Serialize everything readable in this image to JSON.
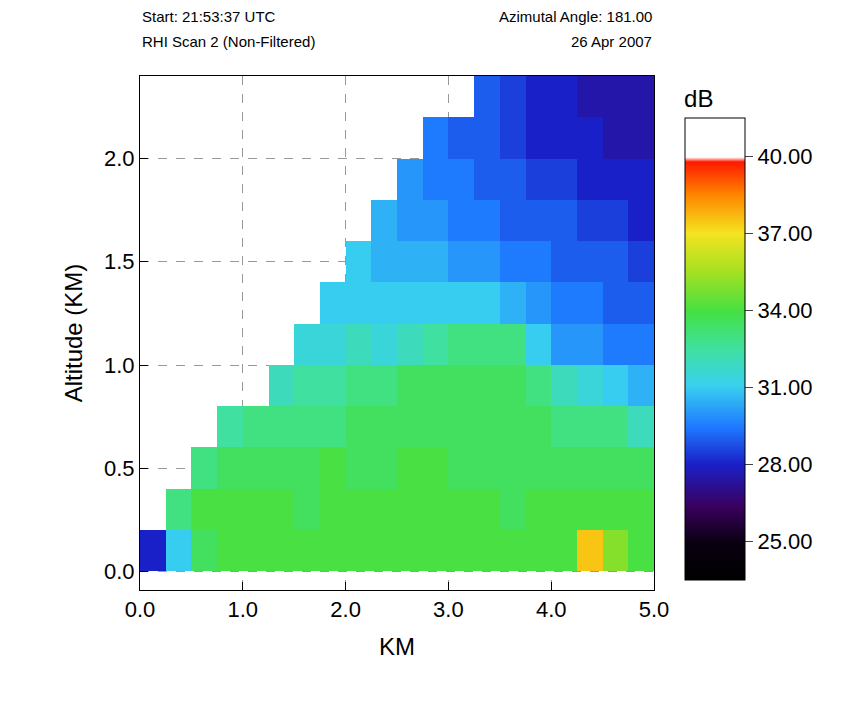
{
  "chart_data": {
    "type": "heatmap",
    "annotations": [
      "Start: 21:53:37 UTC",
      "Azimutal Angle: 181.00",
      "RHI Scan 2 (Non-Filtered)",
      "26 Apr 2007"
    ],
    "x_label": "KM",
    "y_label": "Altitude (KM)",
    "xlim": [
      0,
      5
    ],
    "ylim": [
      -0.09,
      2.4
    ],
    "xticks": [
      {
        "value": 0,
        "label": "0.0"
      },
      {
        "value": 1,
        "label": "1.0"
      },
      {
        "value": 2,
        "label": "2.0"
      },
      {
        "value": 3,
        "label": "3.0"
      },
      {
        "value": 4,
        "label": "4.0"
      },
      {
        "value": 5,
        "label": "5.0"
      }
    ],
    "yticks": [
      {
        "value": 0,
        "label": "0.0"
      },
      {
        "value": 0.5,
        "label": "0.5"
      },
      {
        "value": 1,
        "label": "1.0"
      },
      {
        "value": 1.5,
        "label": "1.5"
      },
      {
        "value": 2,
        "label": "2.0"
      }
    ],
    "grid": true,
    "x": [
      0.125,
      0.375,
      0.625,
      0.875,
      1.125,
      1.375,
      1.625,
      1.875,
      2.125,
      2.375,
      2.625,
      2.875,
      3.125,
      3.375,
      3.625,
      3.875,
      4.125,
      4.375,
      4.625,
      4.875
    ],
    "y": [
      0.1,
      0.3,
      0.5,
      0.7,
      0.9,
      1.1,
      1.3,
      1.5,
      1.7,
      1.9,
      2.1,
      2.3
    ],
    "z": [
      [
        28,
        31,
        33.5,
        34,
        34,
        34,
        34,
        34,
        34,
        34,
        34,
        34,
        34,
        34,
        34,
        34,
        34,
        37.5,
        35,
        34
      ],
      [
        null,
        33,
        34,
        34,
        34,
        34,
        33.5,
        34,
        34,
        34,
        34,
        34,
        34,
        34,
        33.5,
        34,
        34,
        34,
        34,
        34
      ],
      [
        null,
        null,
        33,
        33.5,
        33.5,
        33.5,
        33.5,
        34,
        33.5,
        33.5,
        34,
        34,
        33.5,
        33.5,
        33.5,
        33.5,
        33.5,
        33.5,
        33.5,
        33.5
      ],
      [
        null,
        null,
        null,
        32.5,
        33,
        33,
        33,
        33,
        33.5,
        33.5,
        33.5,
        33.5,
        33.5,
        33.5,
        33.5,
        33.5,
        33,
        33,
        33,
        32
      ],
      [
        null,
        null,
        null,
        null,
        null,
        32,
        32.5,
        32.5,
        33,
        33,
        33.5,
        33.5,
        33.5,
        33.5,
        33.5,
        33,
        32,
        31.5,
        31,
        30.5
      ],
      [
        null,
        null,
        null,
        null,
        null,
        null,
        31.5,
        31.5,
        32,
        31.5,
        32,
        32.5,
        33,
        33,
        33,
        31,
        30,
        30,
        29.5,
        29.5
      ],
      [
        null,
        null,
        null,
        null,
        null,
        null,
        null,
        31,
        31,
        31,
        31,
        31,
        31,
        31,
        30.5,
        30,
        29.5,
        29.5,
        29,
        29
      ],
      [
        null,
        null,
        null,
        null,
        null,
        null,
        null,
        null,
        31,
        30.5,
        30.5,
        30.5,
        30,
        30,
        29.5,
        29.5,
        29,
        29,
        29,
        28.5
      ],
      [
        null,
        null,
        null,
        null,
        null,
        null,
        null,
        null,
        null,
        30.5,
        30,
        30,
        29.5,
        29.5,
        29,
        29,
        29,
        28.5,
        28.5,
        28
      ],
      [
        null,
        null,
        null,
        null,
        null,
        null,
        null,
        null,
        null,
        null,
        30,
        29.5,
        29.5,
        29,
        29,
        28.5,
        28.5,
        28,
        28,
        28
      ],
      [
        null,
        null,
        null,
        null,
        null,
        null,
        null,
        null,
        null,
        null,
        null,
        29.5,
        29,
        29,
        28.5,
        28,
        28,
        28,
        27.5,
        27.5
      ],
      [
        null,
        null,
        null,
        null,
        null,
        null,
        null,
        null,
        null,
        null,
        null,
        null,
        null,
        29,
        28.5,
        28,
        28,
        27.5,
        27.5,
        27.5
      ]
    ],
    "colorbar": {
      "title": "dB",
      "range": [
        23.5,
        41.5
      ],
      "ticks": [
        {
          "value": 25,
          "label": "25.00"
        },
        {
          "value": 28,
          "label": "28.00"
        },
        {
          "value": 31,
          "label": "31.00"
        },
        {
          "value": 34,
          "label": "34.00"
        },
        {
          "value": 37,
          "label": "37.00"
        },
        {
          "value": 40,
          "label": "40.00"
        }
      ]
    }
  }
}
